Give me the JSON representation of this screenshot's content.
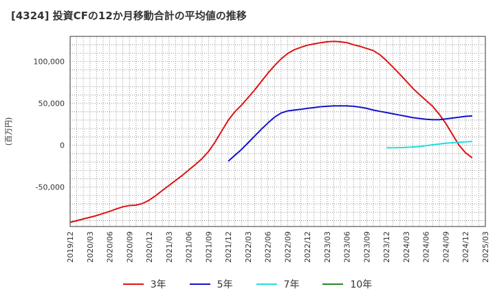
{
  "chart_title": "[4324]  投資CFの12か月移動合計の平均値の推移",
  "chart_data": {
    "type": "line",
    "title": "[4324]  投資CFの12か月移動合計の平均値の推移",
    "ylabel": "(百万円)",
    "xlabel": "",
    "ylim": [
      -97000,
      130000
    ],
    "y_ticks": [
      100000,
      50000,
      0,
      -50000
    ],
    "y_tick_labels": [
      "100,000",
      "50,000",
      "0",
      "-50,000"
    ],
    "x_range": [
      "2019-12",
      "2025-03"
    ],
    "x_ticks": [
      "2019/12",
      "2020/03",
      "2020/06",
      "2020/09",
      "2020/12",
      "2021/03",
      "2021/06",
      "2021/09",
      "2021/12",
      "2022/03",
      "2022/06",
      "2022/09",
      "2022/12",
      "2023/03",
      "2023/06",
      "2023/09",
      "2023/12",
      "2024/03",
      "2024/06",
      "2024/09",
      "2024/12",
      "2025/03"
    ],
    "grid": true,
    "legend_position": "bottom",
    "series": [
      {
        "name": "3年",
        "color": "#dd1111",
        "points": [
          [
            "2019-12",
            -92000
          ],
          [
            "2020-01",
            -90000
          ],
          [
            "2020-02",
            -88000
          ],
          [
            "2020-03",
            -86000
          ],
          [
            "2020-04",
            -84000
          ],
          [
            "2020-05",
            -81500
          ],
          [
            "2020-06",
            -79000
          ],
          [
            "2020-07",
            -76000
          ],
          [
            "2020-08",
            -73500
          ],
          [
            "2020-09",
            -72000
          ],
          [
            "2020-10",
            -71500
          ],
          [
            "2020-11",
            -69500
          ],
          [
            "2020-12",
            -65500
          ],
          [
            "2021-01",
            -60000
          ],
          [
            "2021-02",
            -54000
          ],
          [
            "2021-03",
            -48000
          ],
          [
            "2021-04",
            -42000
          ],
          [
            "2021-05",
            -36000
          ],
          [
            "2021-06",
            -29500
          ],
          [
            "2021-07",
            -23000
          ],
          [
            "2021-08",
            -16000
          ],
          [
            "2021-09",
            -7500
          ],
          [
            "2021-10",
            4000
          ],
          [
            "2021-11",
            17000
          ],
          [
            "2021-12",
            30000
          ],
          [
            "2022-01",
            40000
          ],
          [
            "2022-02",
            48000
          ],
          [
            "2022-03",
            57000
          ],
          [
            "2022-04",
            66000
          ],
          [
            "2022-05",
            76000
          ],
          [
            "2022-06",
            86000
          ],
          [
            "2022-07",
            95000
          ],
          [
            "2022-08",
            103000
          ],
          [
            "2022-09",
            109500
          ],
          [
            "2022-10",
            114000
          ],
          [
            "2022-11",
            117000
          ],
          [
            "2022-12",
            119500
          ],
          [
            "2023-01",
            121000
          ],
          [
            "2023-02",
            122500
          ],
          [
            "2023-03",
            123500
          ],
          [
            "2023-04",
            124000
          ],
          [
            "2023-05",
            123500
          ],
          [
            "2023-06",
            122500
          ],
          [
            "2023-07",
            120000
          ],
          [
            "2023-08",
            118000
          ],
          [
            "2023-09",
            115500
          ],
          [
            "2023-10",
            113000
          ],
          [
            "2023-11",
            108000
          ],
          [
            "2023-12",
            101000
          ],
          [
            "2024-01",
            93000
          ],
          [
            "2024-02",
            85000
          ],
          [
            "2024-03",
            76500
          ],
          [
            "2024-04",
            68000
          ],
          [
            "2024-05",
            60500
          ],
          [
            "2024-06",
            53500
          ],
          [
            "2024-07",
            46500
          ],
          [
            "2024-08",
            37000
          ],
          [
            "2024-09",
            26000
          ],
          [
            "2024-10",
            13000
          ],
          [
            "2024-11",
            0
          ],
          [
            "2024-12",
            -9000
          ],
          [
            "2025-01",
            -15000
          ]
        ]
      },
      {
        "name": "5年",
        "color": "#1111cc",
        "points": [
          [
            "2021-12",
            -19000
          ],
          [
            "2022-01",
            -12000
          ],
          [
            "2022-02",
            -5000
          ],
          [
            "2022-03",
            3000
          ],
          [
            "2022-04",
            11000
          ],
          [
            "2022-05",
            19000
          ],
          [
            "2022-06",
            26500
          ],
          [
            "2022-07",
            33500
          ],
          [
            "2022-08",
            38500
          ],
          [
            "2022-09",
            41000
          ],
          [
            "2022-10",
            42000
          ],
          [
            "2022-11",
            43000
          ],
          [
            "2022-12",
            44000
          ],
          [
            "2023-01",
            45000
          ],
          [
            "2023-02",
            46000
          ],
          [
            "2023-03",
            46500
          ],
          [
            "2023-04",
            47000
          ],
          [
            "2023-05",
            47000
          ],
          [
            "2023-06",
            47000
          ],
          [
            "2023-07",
            46500
          ],
          [
            "2023-08",
            45500
          ],
          [
            "2023-09",
            44000
          ],
          [
            "2023-10",
            42000
          ],
          [
            "2023-11",
            40500
          ],
          [
            "2023-12",
            39000
          ],
          [
            "2024-01",
            37500
          ],
          [
            "2024-02",
            36000
          ],
          [
            "2024-03",
            34500
          ],
          [
            "2024-04",
            33000
          ],
          [
            "2024-05",
            32000
          ],
          [
            "2024-06",
            31000
          ],
          [
            "2024-07",
            30500
          ],
          [
            "2024-08",
            30500
          ],
          [
            "2024-09",
            31500
          ],
          [
            "2024-10",
            32500
          ],
          [
            "2024-11",
            33500
          ],
          [
            "2024-12",
            34500
          ],
          [
            "2025-01",
            35000
          ]
        ]
      },
      {
        "name": "7年",
        "color": "#22dddd",
        "points": [
          [
            "2023-12",
            -3000
          ],
          [
            "2024-01",
            -3000
          ],
          [
            "2024-02",
            -2800
          ],
          [
            "2024-03",
            -2500
          ],
          [
            "2024-04",
            -2000
          ],
          [
            "2024-05",
            -1500
          ],
          [
            "2024-06",
            -500
          ],
          [
            "2024-07",
            500
          ],
          [
            "2024-08",
            1500
          ],
          [
            "2024-09",
            2500
          ],
          [
            "2024-10",
            3000
          ],
          [
            "2024-11",
            3500
          ],
          [
            "2024-12",
            4000
          ],
          [
            "2025-01",
            4500
          ]
        ]
      },
      {
        "name": "10年",
        "color": "#228822",
        "points": []
      }
    ]
  }
}
